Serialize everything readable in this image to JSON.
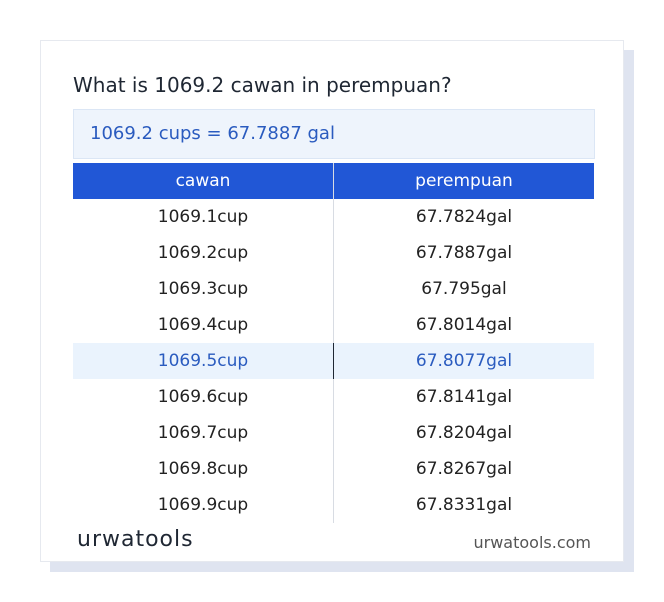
{
  "header": {
    "title": "What is 1069.2 cawan in perempuan?"
  },
  "result": "1069.2 cups = 67.7887 gal",
  "table": {
    "columns": [
      "cawan",
      "perempuan"
    ],
    "rows": [
      [
        "1069.1cup",
        "67.7824gal"
      ],
      [
        "1069.2cup",
        "67.7887gal"
      ],
      [
        "1069.3cup",
        "67.795gal"
      ],
      [
        "1069.4cup",
        "67.8014gal"
      ],
      [
        "1069.5cup",
        "67.8077gal"
      ],
      [
        "1069.6cup",
        "67.8141gal"
      ],
      [
        "1069.7cup",
        "67.8204gal"
      ],
      [
        "1069.8cup",
        "67.8267gal"
      ],
      [
        "1069.9cup",
        "67.8331gal"
      ]
    ]
  },
  "footer": {
    "logo": "urwatools",
    "site": "urwatools.com"
  }
}
